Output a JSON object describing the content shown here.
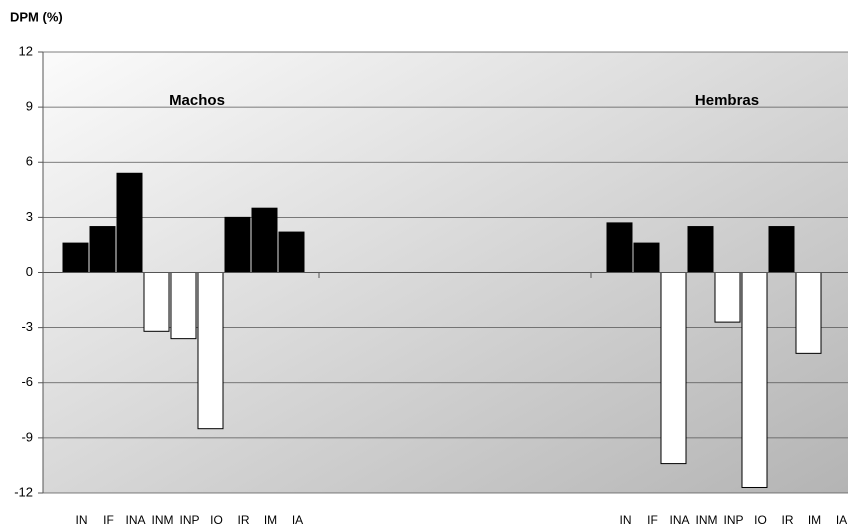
{
  "chart_data": {
    "type": "bar",
    "title": "DPM (%)",
    "ylim": [
      -12,
      12
    ],
    "yticks": [
      -12,
      -9,
      -6,
      -3,
      0,
      3,
      6,
      9,
      12
    ],
    "grid": true,
    "positive_color": "#000000",
    "negative_color": "#ffffff",
    "groups": [
      {
        "name": "Machos",
        "categories": [
          "IN",
          "IF",
          "INA",
          "INM",
          "INP",
          "IO",
          "IR",
          "IM",
          "IA"
        ],
        "values": [
          1.6,
          2.5,
          5.4,
          -3.2,
          -3.6,
          -8.5,
          3.0,
          3.5,
          2.2
        ]
      },
      {
        "name": "Hembras",
        "categories": [
          "IN",
          "IF",
          "INA",
          "INM",
          "INP",
          "IO",
          "IR",
          "IM",
          "IA"
        ],
        "values": [
          2.7,
          1.6,
          -10.4,
          2.5,
          -2.7,
          -11.7,
          2.5,
          -4.4,
          null
        ]
      }
    ]
  }
}
